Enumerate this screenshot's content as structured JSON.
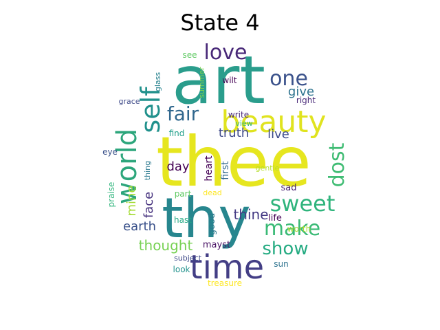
{
  "title": "State 4",
  "chart_data": {
    "type": "wordcloud",
    "words": [
      {
        "text": "thee",
        "color": "#e6e61f"
      },
      {
        "text": "art",
        "color": "#2a9d8c"
      },
      {
        "text": "thy",
        "color": "#27868e"
      },
      {
        "text": "beauty",
        "color": "#e0e31f"
      },
      {
        "text": "time",
        "color": "#433e85"
      },
      {
        "text": "world",
        "color": "#2da67c"
      },
      {
        "text": "sweet",
        "color": "#2fb47c"
      },
      {
        "text": "self",
        "color": "#21918c"
      },
      {
        "text": "love",
        "color": "#482878"
      },
      {
        "text": "one",
        "color": "#3b528b"
      },
      {
        "text": "make",
        "color": "#3aba76"
      },
      {
        "text": "show",
        "color": "#25ab82"
      },
      {
        "text": "dost",
        "color": "#3fbc73"
      },
      {
        "text": "fair",
        "color": "#31688e"
      },
      {
        "text": "thine",
        "color": "#443a83"
      },
      {
        "text": "thought",
        "color": "#77d153"
      },
      {
        "text": "truth",
        "color": "#3e4989"
      },
      {
        "text": "give",
        "color": "#2c728e"
      },
      {
        "text": "live",
        "color": "#3e4c8a"
      },
      {
        "text": "earth",
        "color": "#3b528b"
      },
      {
        "text": "mine",
        "color": "#a5db36"
      },
      {
        "text": "face",
        "color": "#46327e"
      },
      {
        "text": "day",
        "color": "#440154"
      },
      {
        "text": "heart",
        "color": "#440154"
      },
      {
        "text": "first",
        "color": "#31688e"
      },
      {
        "text": "sad",
        "color": "#482374"
      },
      {
        "text": "life",
        "color": "#440154"
      },
      {
        "text": "worth",
        "color": "#a8db34"
      },
      {
        "text": "good",
        "color": "#2a788e"
      },
      {
        "text": "mayst",
        "color": "#471063"
      },
      {
        "text": "sun",
        "color": "#2c728e"
      },
      {
        "text": "look",
        "color": "#21918c"
      },
      {
        "text": "treasure",
        "color": "#fde725"
      },
      {
        "text": "subject",
        "color": "#3e4a89"
      },
      {
        "text": "hast",
        "color": "#22a884"
      },
      {
        "text": "part",
        "color": "#5ec962"
      },
      {
        "text": "dead",
        "color": "#fde725"
      },
      {
        "text": "gentle",
        "color": "#b5de2b"
      },
      {
        "text": "praise",
        "color": "#2fb47c"
      },
      {
        "text": "thing",
        "color": "#2a788e"
      },
      {
        "text": "eye",
        "color": "#3b528b"
      },
      {
        "text": "find",
        "color": "#1f9e89"
      },
      {
        "text": "write",
        "color": "#482878"
      },
      {
        "text": "view",
        "color": "#35b779"
      },
      {
        "text": "right",
        "color": "#482878"
      },
      {
        "text": "wilt",
        "color": "#440154"
      },
      {
        "text": "grace",
        "color": "#3e4a89"
      },
      {
        "text": "glass",
        "color": "#26828e"
      },
      {
        "text": "summer",
        "color": "#7ad151"
      },
      {
        "text": "see",
        "color": "#5ec962"
      }
    ]
  }
}
